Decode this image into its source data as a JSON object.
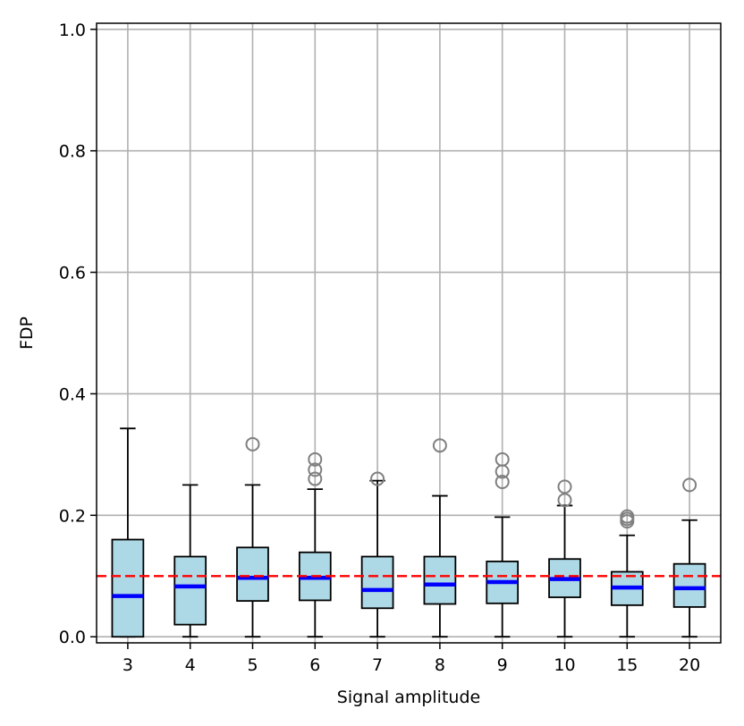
{
  "chart_data": {
    "type": "box",
    "xlabel": "Signal amplitude",
    "ylabel": "FDP",
    "ylim": [
      -0.01,
      1.01
    ],
    "yticks": [
      "0.0",
      "0.2",
      "0.4",
      "0.6",
      "0.8",
      "1.0"
    ],
    "ytick_values": [
      0.0,
      0.2,
      0.4,
      0.6,
      0.8,
      1.0
    ],
    "grid": true,
    "reference_line": {
      "value": 0.1,
      "style": "dashed",
      "color": "#ff0000"
    },
    "box_fill": "#add8e6",
    "median_color": "#0000ff",
    "flier_color": "#808080",
    "categories": [
      "3",
      "4",
      "5",
      "6",
      "7",
      "8",
      "9",
      "10",
      "15",
      "20"
    ],
    "boxes": [
      {
        "low": 0.0,
        "q1": 0.0,
        "median": 0.067,
        "q3": 0.16,
        "high": 0.343,
        "fliers": []
      },
      {
        "low": 0.0,
        "q1": 0.02,
        "median": 0.083,
        "q3": 0.132,
        "high": 0.25,
        "fliers": []
      },
      {
        "low": 0.0,
        "q1": 0.059,
        "median": 0.097,
        "q3": 0.147,
        "high": 0.25,
        "fliers": [
          0.317
        ]
      },
      {
        "low": 0.0,
        "q1": 0.06,
        "median": 0.097,
        "q3": 0.139,
        "high": 0.243,
        "fliers": [
          0.26,
          0.275,
          0.292
        ]
      },
      {
        "low": 0.0,
        "q1": 0.047,
        "median": 0.077,
        "q3": 0.132,
        "high": 0.257,
        "fliers": [
          0.26
        ]
      },
      {
        "low": 0.0,
        "q1": 0.054,
        "median": 0.086,
        "q3": 0.132,
        "high": 0.232,
        "fliers": [
          0.315
        ]
      },
      {
        "low": 0.0,
        "q1": 0.055,
        "median": 0.09,
        "q3": 0.124,
        "high": 0.197,
        "fliers": [
          0.255,
          0.272,
          0.292
        ]
      },
      {
        "low": 0.0,
        "q1": 0.065,
        "median": 0.095,
        "q3": 0.128,
        "high": 0.216,
        "fliers": [
          0.225,
          0.247
        ]
      },
      {
        "low": 0.0,
        "q1": 0.052,
        "median": 0.081,
        "q3": 0.107,
        "high": 0.167,
        "fliers": [
          0.19,
          0.194,
          0.198
        ]
      },
      {
        "low": 0.0,
        "q1": 0.049,
        "median": 0.08,
        "q3": 0.12,
        "high": 0.192,
        "fliers": [
          0.25
        ]
      }
    ]
  }
}
